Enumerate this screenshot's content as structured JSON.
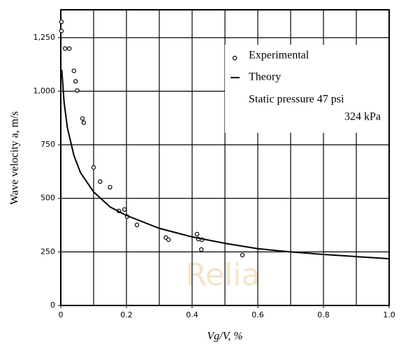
{
  "chart_data": {
    "type": "line",
    "x_label": "Vg/V, %",
    "y_label": "Wave velocity a, m/s",
    "annotation": [
      "Static pressure 47 psi",
      "324 kPa"
    ],
    "watermark": "Relia",
    "xlim": [
      0,
      1.0
    ],
    "ylim": [
      0,
      1380
    ],
    "xticks": [
      0,
      0.2,
      0.4,
      0.6,
      0.8,
      {
        "value": 1.0,
        "label": "1.0"
      }
    ],
    "yticks": [
      0,
      250,
      500,
      750,
      {
        "value": 1000,
        "label": "1,000"
      },
      {
        "value": 1250,
        "label": "1,250"
      }
    ],
    "grid": true,
    "series": [
      {
        "name": "Experimental",
        "style": "marker",
        "color": "#000000",
        "x": [
          0.002,
          0.002,
          0.013,
          0.026,
          0.04,
          0.045,
          0.05,
          0.066,
          0.07,
          0.1,
          0.12,
          0.15,
          0.177,
          0.194,
          0.202,
          0.232,
          0.32,
          0.328,
          0.415,
          0.419,
          0.43,
          0.428,
          0.553
        ],
        "values": [
          1324,
          1281,
          1199,
          1199,
          1095,
          1046,
          1003,
          873,
          853,
          644,
          578,
          552,
          441,
          448,
          415,
          376,
          317,
          307,
          333,
          310,
          307,
          261,
          235
        ]
      },
      {
        "name": "Theory",
        "style": "line",
        "color": "#000000",
        "x": [
          0.003,
          0.01,
          0.02,
          0.04,
          0.06,
          0.1,
          0.15,
          0.2,
          0.3,
          0.4,
          0.5,
          0.6,
          0.7,
          0.8,
          0.9,
          1.0
        ],
        "values": [
          1100,
          950,
          830,
          700,
          620,
          530,
          460,
          420,
          360,
          320,
          290,
          265,
          250,
          238,
          228,
          218
        ]
      }
    ]
  }
}
